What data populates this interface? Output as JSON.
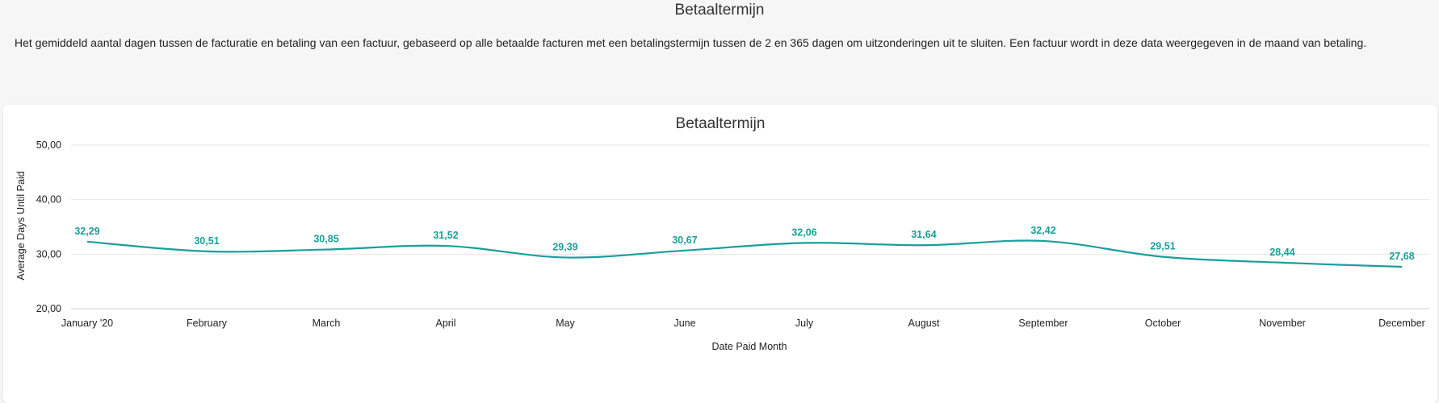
{
  "page": {
    "title": "Betaaltermijn",
    "description": "Het gemiddeld aantal dagen tussen de facturatie en betaling van een factuur, gebaseerd op alle betaalde facturen met een betalingstermijn tussen de 2 en 365 dagen om uitzonderingen uit te sluiten. Een factuur wordt in deze data weergegeven in de maand van betaling."
  },
  "colors": {
    "series": "#1a9e9a",
    "grid": "#e6e6e6",
    "axis": "#cfcfcf"
  },
  "chart_data": {
    "type": "line",
    "title": "Betaaltermijn",
    "xlabel": "Date Paid Month",
    "ylabel": "Average Days Until Paid",
    "categories": [
      "January '20",
      "February",
      "March",
      "April",
      "May",
      "June",
      "July",
      "August",
      "September",
      "October",
      "November",
      "December"
    ],
    "values": [
      32.29,
      30.51,
      30.85,
      31.52,
      29.39,
      30.67,
      32.06,
      31.64,
      32.42,
      29.51,
      28.44,
      27.68
    ],
    "value_labels": [
      "32,29",
      "30,51",
      "30,85",
      "31,52",
      "29,39",
      "30,67",
      "32,06",
      "31,64",
      "32,42",
      "29,51",
      "28,44",
      "27,68"
    ],
    "ylim": [
      20,
      50
    ],
    "yticks": [
      20,
      30,
      40,
      50
    ],
    "ytick_labels": [
      "20,00",
      "30,00",
      "40,00",
      "50,00"
    ],
    "grid": true,
    "smooth": true
  }
}
